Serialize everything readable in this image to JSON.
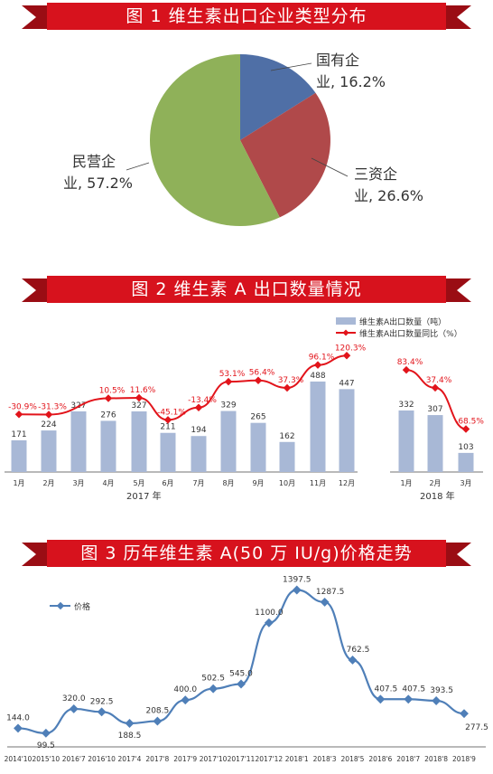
{
  "colors": {
    "banner_red": "#d7121d",
    "banner_dark": "#9a0d14",
    "pie_state": "#4f6fa6",
    "pie_foreign": "#b0494a",
    "pie_private": "#8fb159",
    "bar_blue": "#a8b8d6",
    "line_red": "#e2141b",
    "line_blue": "#4f7fb8",
    "label_red": "#e2141b"
  },
  "figure1": {
    "title": "图 1    维生素出口企业类型分布",
    "labels": [
      {
        "line1": "国有企",
        "line2": "业, 16.2%"
      },
      {
        "line1": "三资企",
        "line2": "业, 26.6%"
      },
      {
        "line1": "民营企",
        "line2": "业, 57.2%"
      }
    ]
  },
  "figure2": {
    "title": "图 2    维生素 A 出口数量情况",
    "legend": {
      "bar": "维生素A出口数量（吨）",
      "line": "维生素A出口数量同比（%）"
    },
    "years": {
      "y2017": "2017 年",
      "y2018": "2018 年"
    },
    "bar_labels": [
      "171",
      "224",
      "327",
      "276",
      "327",
      "211",
      "194",
      "329",
      "265",
      "162",
      "488",
      "447",
      "332",
      "307",
      "103"
    ],
    "line_labels": [
      "-30.9%",
      "-31.3%",
      "",
      "10.5%",
      "11.6%",
      "-45.1%",
      "-13.4%",
      "53.1%",
      "56.4%",
      "37.3%",
      "96.1%",
      "120.3%",
      "83.4%",
      "37.4%",
      "-68.5%"
    ]
  },
  "figure3": {
    "title": "图 3    历年维生素 A(50 万 IU/g)价格走势",
    "legend": "价格",
    "value_labels": [
      "144.0",
      "99.5",
      "320.0",
      "292.5",
      "188.5",
      "208.5",
      "400.0",
      "502.5",
      "545.0",
      "1100.0",
      "1397.5",
      "1287.5",
      "762.5",
      "407.5",
      "407.5",
      "393.5",
      "277.5"
    ]
  },
  "chart_data": [
    {
      "type": "pie",
      "title": "图 1    维生素出口企业类型分布",
      "categories": [
        "国有企业",
        "三资企业",
        "民营企业"
      ],
      "values": [
        16.2,
        26.6,
        57.2
      ]
    },
    {
      "type": "bar",
      "title": "图 2    维生素 A 出口数量情况",
      "categories": [
        "1月",
        "2月",
        "3月",
        "4月",
        "5月",
        "6月",
        "7月",
        "8月",
        "9月",
        "10月",
        "11月",
        "12月",
        "1月",
        "2月",
        "3月"
      ],
      "groups": [
        "2017 年",
        "2018 年"
      ],
      "series": [
        {
          "name": "维生素A出口数量（吨）",
          "type": "bar",
          "values": [
            171,
            224,
            327,
            276,
            327,
            211,
            194,
            329,
            265,
            162,
            488,
            447,
            332,
            307,
            103
          ]
        },
        {
          "name": "维生素A出口数量同比（%）",
          "type": "line",
          "values": [
            -30.9,
            -31.3,
            null,
            10.5,
            11.6,
            -45.1,
            -13.4,
            53.1,
            56.4,
            37.3,
            96.1,
            120.3,
            83.4,
            37.4,
            -68.5
          ]
        }
      ]
    },
    {
      "type": "line",
      "title": "图 3    历年维生素 A(50 万 IU/g)价格走势",
      "x": [
        "2014'10",
        "2015'10",
        "2016'7",
        "2016'10",
        "2017'4",
        "2017'8",
        "2017'9",
        "2017'10",
        "2017'11",
        "2017'12",
        "2018'1",
        "2018'3",
        "2018'5",
        "2018'6",
        "2018'7",
        "2018'8",
        "2018'9"
      ],
      "series": [
        {
          "name": "价格",
          "values": [
            144.0,
            99.5,
            320.0,
            292.5,
            188.5,
            208.5,
            400.0,
            502.5,
            545.0,
            1100.0,
            1397.5,
            1287.5,
            762.5,
            407.5,
            407.5,
            393.5,
            277.5
          ]
        }
      ]
    }
  ]
}
